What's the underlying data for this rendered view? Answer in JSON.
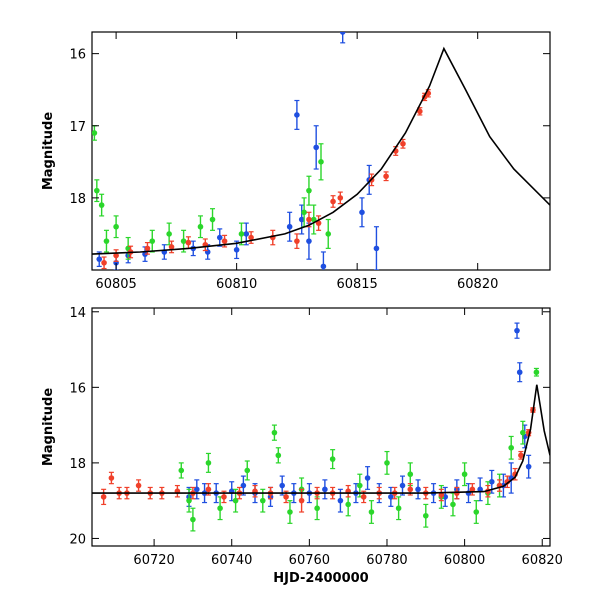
{
  "chart_data": [
    {
      "type": "scatter",
      "title": "",
      "xlabel": "",
      "ylabel": "Magnitude",
      "xlim": [
        60804,
        60823
      ],
      "ylim": [
        19.0,
        15.7
      ],
      "y_inverted": true,
      "xticks": [
        60805,
        60810,
        60815,
        60820
      ],
      "yticks": [
        16,
        17,
        18
      ],
      "grid": false,
      "legend": "none",
      "colors": {
        "series_1": "#1f4fe0",
        "series_2": "#2bd62b",
        "series_3": "#f0402a",
        "model": "#000000"
      },
      "model_curve": {
        "x": [
          60804,
          60806,
          60808,
          60810,
          60812,
          60813,
          60814,
          60815,
          60816,
          60817,
          60818,
          60818.6,
          60819.5,
          60820.5,
          60821.5,
          60823
        ],
        "y": [
          18.78,
          18.75,
          18.7,
          18.63,
          18.5,
          18.38,
          18.2,
          17.95,
          17.6,
          17.1,
          16.45,
          15.93,
          16.5,
          17.15,
          17.6,
          18.1
        ]
      },
      "series": [
        {
          "color": "series_1",
          "x": [
            60804.3,
            60805.0,
            60805.5,
            60806.2,
            60807.0,
            60808.2,
            60808.8,
            60809.3,
            60810.0,
            60810.4,
            60812.2,
            60812.5,
            60812.7,
            60813.0,
            60813.3,
            60813.6,
            60814.4,
            60815.2,
            60815.5,
            60815.8
          ],
          "y": [
            18.85,
            18.9,
            18.8,
            18.78,
            18.75,
            18.7,
            18.75,
            18.55,
            18.72,
            18.5,
            18.4,
            16.85,
            18.3,
            18.6,
            17.3,
            18.95,
            15.7,
            18.2,
            17.75,
            18.7
          ],
          "err": [
            0.1,
            0.1,
            0.1,
            0.1,
            0.1,
            0.1,
            0.1,
            0.12,
            0.12,
            0.15,
            0.2,
            0.2,
            0.2,
            0.25,
            0.3,
            0.2,
            0.15,
            0.2,
            0.2,
            0.3
          ]
        },
        {
          "color": "series_2",
          "x": [
            60804.1,
            60804.2,
            60804.4,
            60804.6,
            60805.0,
            60805.5,
            60806.5,
            60807.2,
            60807.8,
            60808.5,
            60809.0,
            60810.2,
            60812.8,
            60813.0,
            60813.2,
            60813.5,
            60813.8
          ],
          "y": [
            17.1,
            17.9,
            18.1,
            18.6,
            18.4,
            18.7,
            18.6,
            18.5,
            18.6,
            18.4,
            18.3,
            18.5,
            18.2,
            17.9,
            18.3,
            17.5,
            18.5
          ],
          "err": [
            0.1,
            0.15,
            0.15,
            0.15,
            0.15,
            0.15,
            0.15,
            0.15,
            0.15,
            0.15,
            0.15,
            0.15,
            0.2,
            0.2,
            0.2,
            0.25,
            0.2
          ]
        },
        {
          "color": "series_3",
          "x": [
            60804.5,
            60805.0,
            60805.6,
            60806.3,
            60807.3,
            60808.0,
            60808.7,
            60809.5,
            60810.6,
            60811.5,
            60812.5,
            60813.0,
            60813.4,
            60814.0,
            60814.3,
            60815.6,
            60816.2,
            60816.6,
            60816.9,
            60817.6,
            60817.8,
            60817.95
          ],
          "y": [
            18.9,
            18.8,
            18.75,
            18.7,
            18.68,
            18.62,
            18.65,
            18.6,
            18.55,
            18.55,
            18.6,
            18.3,
            18.35,
            18.05,
            18.0,
            17.75,
            17.7,
            17.35,
            17.25,
            16.8,
            16.6,
            16.55
          ],
          "err": [
            0.08,
            0.08,
            0.08,
            0.08,
            0.08,
            0.08,
            0.08,
            0.08,
            0.08,
            0.1,
            0.1,
            0.1,
            0.1,
            0.08,
            0.08,
            0.08,
            0.06,
            0.06,
            0.06,
            0.05,
            0.05,
            0.05
          ]
        }
      ]
    },
    {
      "type": "scatter",
      "title": "",
      "xlabel": "HJD-2400000",
      "ylabel": "Magnitude",
      "xlim": [
        60704,
        60822
      ],
      "ylim": [
        20.2,
        13.9
      ],
      "y_inverted": true,
      "xticks": [
        60720,
        60740,
        60760,
        60780,
        60800,
        60820
      ],
      "yticks": [
        14,
        16,
        18,
        20
      ],
      "grid": false,
      "legend": "none",
      "colors": {
        "series_1": "#1f4fe0",
        "series_2": "#2bd62b",
        "series_3": "#f0402a",
        "model": "#000000"
      },
      "model_curve": {
        "x": [
          60704,
          60730,
          60760,
          60790,
          60805,
          60810,
          60813,
          60815,
          60817,
          60818.6,
          60819.5,
          60820.5,
          60822
        ],
        "y": [
          18.8,
          18.8,
          18.8,
          18.8,
          18.76,
          18.62,
          18.38,
          17.95,
          17.1,
          15.93,
          16.5,
          17.15,
          17.8
        ]
      },
      "series": [
        {
          "color": "series_1",
          "x": [
            60729,
            60731,
            60733,
            60736,
            60740,
            60743,
            60746,
            60750,
            60753,
            60756,
            60760,
            60764,
            60768,
            60772,
            60775,
            60778,
            60781,
            60784,
            60788,
            60792,
            60795,
            60798,
            60801,
            60804,
            60807,
            60810,
            60812,
            60813.5,
            60814.2,
            60815.5,
            60816.5
          ],
          "y": [
            18.9,
            18.7,
            18.8,
            18.8,
            18.75,
            18.6,
            18.8,
            18.9,
            18.6,
            18.8,
            18.8,
            18.7,
            19.0,
            18.8,
            18.4,
            18.8,
            18.9,
            18.6,
            18.7,
            18.8,
            18.9,
            18.7,
            18.8,
            18.7,
            18.5,
            18.6,
            18.4,
            14.5,
            15.6,
            17.3,
            18.1
          ],
          "err": [
            0.25,
            0.25,
            0.25,
            0.25,
            0.25,
            0.25,
            0.25,
            0.25,
            0.25,
            0.25,
            0.25,
            0.25,
            0.3,
            0.25,
            0.3,
            0.25,
            0.25,
            0.25,
            0.25,
            0.25,
            0.25,
            0.25,
            0.25,
            0.3,
            0.3,
            0.3,
            0.4,
            0.2,
            0.25,
            0.3,
            0.3
          ]
        },
        {
          "color": "series_2",
          "x": [
            60727,
            60729,
            60730,
            60734,
            60737,
            60741,
            60744,
            60748,
            60751,
            60752,
            60755,
            60758,
            60762,
            60766,
            60770,
            60773,
            60776,
            60780,
            60783,
            60786,
            60790,
            60794,
            60797,
            60800,
            60803,
            60806,
            60809,
            60812,
            60815,
            60818.5
          ],
          "y": [
            18.2,
            19.0,
            19.5,
            18.0,
            19.2,
            19.0,
            18.2,
            19.0,
            17.2,
            17.8,
            19.3,
            18.7,
            19.2,
            17.9,
            19.1,
            18.6,
            19.3,
            18.0,
            19.2,
            18.3,
            19.4,
            18.9,
            19.1,
            18.3,
            19.3,
            18.8,
            18.6,
            17.6,
            17.2,
            15.6
          ],
          "err": [
            0.2,
            0.3,
            0.3,
            0.25,
            0.3,
            0.3,
            0.25,
            0.3,
            0.2,
            0.2,
            0.3,
            0.3,
            0.3,
            0.25,
            0.3,
            0.3,
            0.3,
            0.3,
            0.3,
            0.3,
            0.3,
            0.3,
            0.3,
            0.3,
            0.3,
            0.3,
            0.3,
            0.3,
            0.3,
            0.1
          ]
        },
        {
          "color": "series_3",
          "x": [
            60707,
            60709,
            60711,
            60713,
            60716,
            60719,
            60722,
            60726,
            60730,
            60734,
            60738,
            60742,
            60746,
            60750,
            60754,
            60758,
            60762,
            60766,
            60770,
            60774,
            60778,
            60782,
            60786,
            60790,
            60794,
            60798,
            60802,
            60806,
            60809,
            60811,
            60813,
            60814.5,
            60816.5,
            60817.6
          ],
          "y": [
            18.9,
            18.4,
            18.8,
            18.8,
            18.6,
            18.8,
            18.8,
            18.75,
            18.8,
            18.7,
            18.9,
            18.8,
            18.75,
            18.8,
            18.9,
            19.0,
            18.8,
            18.8,
            18.75,
            18.9,
            18.8,
            18.8,
            18.7,
            18.8,
            18.85,
            18.8,
            18.7,
            18.75,
            18.6,
            18.5,
            18.3,
            17.8,
            17.2,
            16.6
          ],
          "err": [
            0.2,
            0.15,
            0.15,
            0.15,
            0.15,
            0.15,
            0.15,
            0.15,
            0.15,
            0.15,
            0.15,
            0.15,
            0.15,
            0.15,
            0.15,
            0.3,
            0.15,
            0.15,
            0.15,
            0.15,
            0.15,
            0.15,
            0.15,
            0.15,
            0.15,
            0.15,
            0.15,
            0.15,
            0.15,
            0.15,
            0.15,
            0.1,
            0.08,
            0.06
          ]
        }
      ]
    }
  ]
}
